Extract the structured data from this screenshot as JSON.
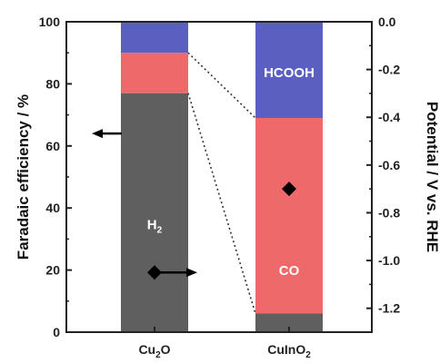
{
  "chart_data": {
    "type": "bar",
    "stacked": true,
    "categories": [
      "Cu2O",
      "CuInO2"
    ],
    "category_labels": [
      {
        "base": "Cu",
        "sub": "2",
        "tail": "O"
      },
      {
        "base": "CuInO",
        "sub": "2",
        "tail": ""
      }
    ],
    "series": [
      {
        "id": "H2",
        "values": [
          77,
          6
        ],
        "color": "#5f5f5f",
        "label_base": "H",
        "label_sub": "2",
        "label_color": "#ffffff"
      },
      {
        "id": "CO",
        "values": [
          13,
          63
        ],
        "color": "#ee6a6a",
        "label_base": "CO",
        "label_sub": "",
        "label_color": "#ffffff"
      },
      {
        "id": "HCOOH",
        "values": [
          10,
          31
        ],
        "color": "#5b5fc0",
        "label_base": "HCOOH",
        "label_sub": "",
        "label_color": "#ffffff"
      }
    ],
    "segment_labels": [
      {
        "series": "H2",
        "category": 0
      },
      {
        "series": "CO",
        "category": 1
      },
      {
        "series": "HCOOH",
        "category": 1
      }
    ],
    "potential_points": [
      {
        "category": 0,
        "value": -1.05
      },
      {
        "category": 1,
        "value": -0.7
      }
    ],
    "ylabel": "Faradaic efficiency / %",
    "y2label": "Potential / V vs. RHE",
    "ylim": [
      0,
      100
    ],
    "y2lim": [
      -1.3,
      0.0
    ],
    "yticks": [
      "0",
      "20",
      "40",
      "60",
      "80",
      "100"
    ],
    "y2ticks": [
      "0.0",
      "-0.2",
      "-0.4",
      "-0.6",
      "-0.8",
      "-1.0",
      "-1.2"
    ],
    "grid": false,
    "arrows": [
      {
        "axis": "left",
        "category": 0,
        "value": 64
      },
      {
        "axis": "right",
        "category": 0,
        "value": -1.05
      }
    ]
  }
}
